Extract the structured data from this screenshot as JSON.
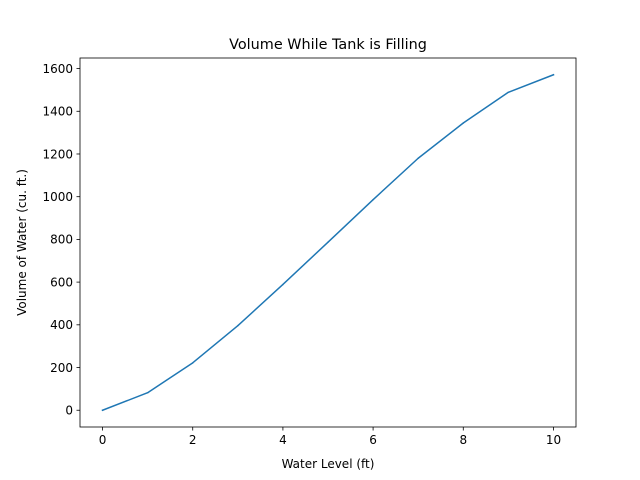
{
  "chart_data": {
    "type": "line",
    "title": "Volume While Tank is Filling",
    "xlabel": "Water Level (ft)",
    "ylabel": "Volume of Water (cu. ft.)",
    "xlim": [
      -0.5,
      10.5
    ],
    "ylim": [
      -78.5,
      1649.5
    ],
    "xticks": [
      0,
      2,
      4,
      6,
      8,
      10
    ],
    "yticks": [
      0,
      200,
      400,
      600,
      800,
      1000,
      1200,
      1400,
      1600
    ],
    "grid": false,
    "legend": "none",
    "series": [
      {
        "color": "#1f77b4",
        "x": [
          0,
          1,
          2,
          3,
          4,
          5,
          6,
          7,
          8,
          9,
          10
        ],
        "y": [
          0,
          82,
          222,
          396,
          589,
          787,
          986,
          1180,
          1345,
          1489,
          1571
        ]
      }
    ]
  }
}
